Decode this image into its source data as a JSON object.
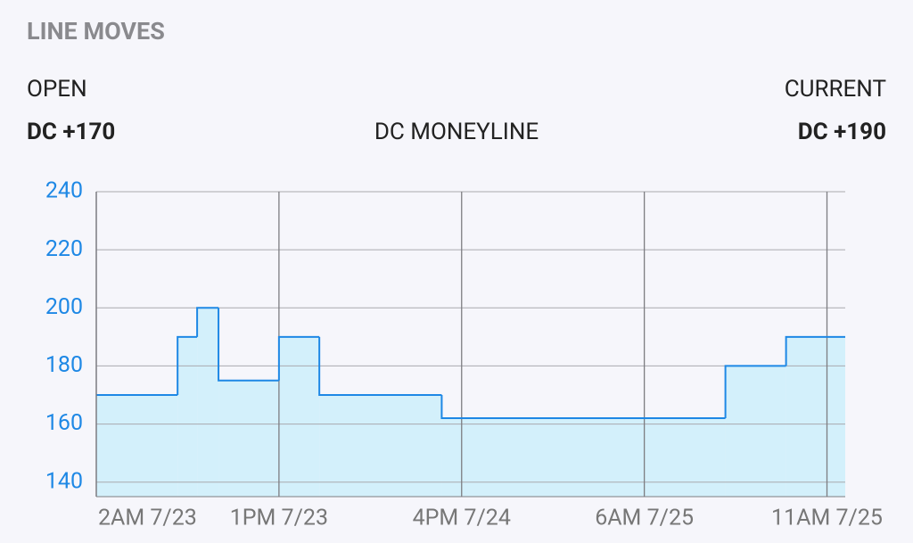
{
  "header": {
    "section": "LINE MOVES",
    "open_label": "OPEN",
    "open_value": "DC +170",
    "current_label": "CURRENT",
    "current_value": "DC +190"
  },
  "chart_data": {
    "type": "step",
    "title": "DC MONEYLINE",
    "x": [
      0,
      0.445,
      0.552,
      0.669,
      1.0,
      1.221,
      1.891,
      3.444,
      3.776
    ],
    "values": [
      170,
      190,
      200,
      175,
      190,
      170,
      162,
      180,
      190
    ],
    "color": "#1e88e5",
    "fill": "#d3f0fb",
    "xlim": [
      0,
      4.1
    ],
    "xticks": [
      {
        "value": 0,
        "label": "2AM 7/23"
      },
      {
        "value": 1,
        "label": "1PM 7/23"
      },
      {
        "value": 2,
        "label": "4PM 7/24"
      },
      {
        "value": 3,
        "label": "6AM 7/25"
      },
      {
        "value": 4,
        "label": "11AM 7/25"
      }
    ],
    "ylim": [
      135,
      240
    ],
    "yticks": [
      140,
      160,
      180,
      200,
      220,
      240
    ],
    "grid": true
  }
}
